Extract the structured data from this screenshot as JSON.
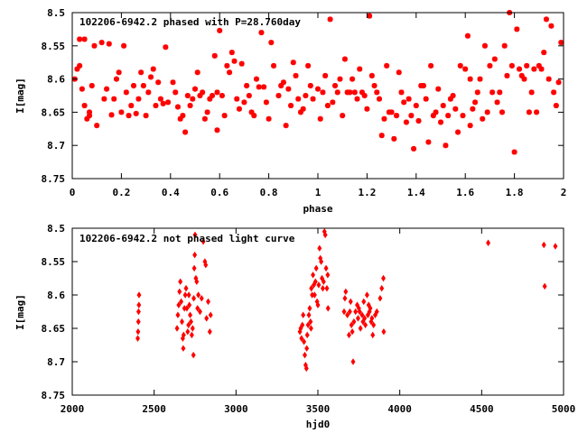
{
  "chart_data": [
    {
      "type": "scatter",
      "title": "102206-6942.2 phased with P=28.760day",
      "xlabel": "phase",
      "ylabel": "I[mag]",
      "xlim": [
        0,
        2
      ],
      "ylim": [
        8.75,
        8.5
      ],
      "y_inverted": true,
      "grid": false,
      "marker": "cross-star",
      "color": "#ff0000",
      "x_ticks": [
        "0",
        "0.2",
        "0.4",
        "0.6",
        "0.8",
        "1",
        "1.2",
        "1.4",
        "1.6",
        "1.8",
        "2"
      ],
      "y_ticks": [
        "8.5",
        "8.55",
        "8.6",
        "8.65",
        "8.7",
        "8.75"
      ],
      "points": [
        [
          0.01,
          8.6
        ],
        [
          0.02,
          8.585
        ],
        [
          0.03,
          8.58
        ],
        [
          0.03,
          8.54
        ],
        [
          0.04,
          8.615
        ],
        [
          0.05,
          8.64
        ],
        [
          0.05,
          8.54
        ],
        [
          0.06,
          8.66
        ],
        [
          0.07,
          8.655
        ],
        [
          0.07,
          8.65
        ],
        [
          0.08,
          8.61
        ],
        [
          0.09,
          8.55
        ],
        [
          0.1,
          8.67
        ],
        [
          0.12,
          8.545
        ],
        [
          0.13,
          8.63
        ],
        [
          0.14,
          8.615
        ],
        [
          0.15,
          8.547
        ],
        [
          0.16,
          8.654
        ],
        [
          0.17,
          8.63
        ],
        [
          0.18,
          8.6
        ],
        [
          0.19,
          8.59
        ],
        [
          0.2,
          8.65
        ],
        [
          0.21,
          8.55
        ],
        [
          0.22,
          8.62
        ],
        [
          0.23,
          8.655
        ],
        [
          0.24,
          8.64
        ],
        [
          0.25,
          8.61
        ],
        [
          0.26,
          8.652
        ],
        [
          0.27,
          8.63
        ],
        [
          0.28,
          8.59
        ],
        [
          0.29,
          8.61
        ],
        [
          0.3,
          8.655
        ],
        [
          0.31,
          8.62
        ],
        [
          0.32,
          8.597
        ],
        [
          0.33,
          8.585
        ],
        [
          0.34,
          8.64
        ],
        [
          0.35,
          8.605
        ],
        [
          0.36,
          8.63
        ],
        [
          0.37,
          8.637
        ],
        [
          0.38,
          8.552
        ],
        [
          0.39,
          8.635
        ],
        [
          0.41,
          8.605
        ],
        [
          0.42,
          8.62
        ],
        [
          0.43,
          8.642
        ],
        [
          0.44,
          8.66
        ],
        [
          0.45,
          8.655
        ],
        [
          0.46,
          8.68
        ],
        [
          0.47,
          8.625
        ],
        [
          0.48,
          8.64
        ],
        [
          0.49,
          8.63
        ],
        [
          0.5,
          8.615
        ],
        [
          0.51,
          8.59
        ],
        [
          0.52,
          8.625
        ],
        [
          0.53,
          8.62
        ],
        [
          0.54,
          8.66
        ],
        [
          0.55,
          8.65
        ],
        [
          0.56,
          8.63
        ],
        [
          0.57,
          8.625
        ],
        [
          0.58,
          8.565
        ],
        [
          0.59,
          8.62
        ],
        [
          0.59,
          8.677
        ],
        [
          0.6,
          8.527
        ],
        [
          0.61,
          8.625
        ],
        [
          0.62,
          8.655
        ],
        [
          0.63,
          8.58
        ],
        [
          0.64,
          8.59
        ],
        [
          0.65,
          8.56
        ],
        [
          0.66,
          8.573
        ],
        [
          0.67,
          8.63
        ],
        [
          0.68,
          8.645
        ],
        [
          0.69,
          8.577
        ],
        [
          0.7,
          8.635
        ],
        [
          0.71,
          8.61
        ],
        [
          0.72,
          8.625
        ],
        [
          0.73,
          8.65
        ],
        [
          0.74,
          8.655
        ],
        [
          0.75,
          8.6
        ],
        [
          0.76,
          8.612
        ],
        [
          0.77,
          8.53
        ],
        [
          0.78,
          8.612
        ],
        [
          0.79,
          8.635
        ],
        [
          0.8,
          8.66
        ],
        [
          0.81,
          8.545
        ],
        [
          0.82,
          8.58
        ],
        [
          0.84,
          8.625
        ],
        [
          0.85,
          8.61
        ],
        [
          0.86,
          8.605
        ],
        [
          0.87,
          8.67
        ],
        [
          0.88,
          8.615
        ],
        [
          0.89,
          8.64
        ],
        [
          0.9,
          8.575
        ],
        [
          0.91,
          8.595
        ],
        [
          0.92,
          8.63
        ],
        [
          0.93,
          8.65
        ],
        [
          0.94,
          8.645
        ],
        [
          0.95,
          8.625
        ],
        [
          0.96,
          8.58
        ],
        [
          0.97,
          8.61
        ],
        [
          0.98,
          8.63
        ],
        [
          1.0,
          8.615
        ],
        [
          1.01,
          8.66
        ],
        [
          1.02,
          8.62
        ],
        [
          1.03,
          8.595
        ],
        [
          1.04,
          8.64
        ],
        [
          1.05,
          8.51
        ],
        [
          1.06,
          8.635
        ],
        [
          1.07,
          8.61
        ],
        [
          1.08,
          8.62
        ],
        [
          1.09,
          8.6
        ],
        [
          1.1,
          8.655
        ],
        [
          1.11,
          8.57
        ],
        [
          1.12,
          8.62
        ],
        [
          1.13,
          8.62
        ],
        [
          1.14,
          8.6
        ],
        [
          1.15,
          8.62
        ],
        [
          1.16,
          8.63
        ],
        [
          1.17,
          8.585
        ],
        [
          1.18,
          8.62
        ],
        [
          1.19,
          8.625
        ],
        [
          1.2,
          8.645
        ],
        [
          1.21,
          8.505
        ],
        [
          1.22,
          8.595
        ],
        [
          1.23,
          8.61
        ],
        [
          1.24,
          8.62
        ],
        [
          1.25,
          8.63
        ],
        [
          1.26,
          8.685
        ],
        [
          1.27,
          8.66
        ],
        [
          1.28,
          8.58
        ],
        [
          1.29,
          8.65
        ],
        [
          1.3,
          8.65
        ],
        [
          1.31,
          8.69
        ],
        [
          1.32,
          8.655
        ],
        [
          1.33,
          8.59
        ],
        [
          1.34,
          8.62
        ],
        [
          1.35,
          8.635
        ],
        [
          1.36,
          8.665
        ],
        [
          1.37,
          8.63
        ],
        [
          1.38,
          8.655
        ],
        [
          1.39,
          8.705
        ],
        [
          1.4,
          8.64
        ],
        [
          1.41,
          8.663
        ],
        [
          1.42,
          8.61
        ],
        [
          1.43,
          8.61
        ],
        [
          1.44,
          8.63
        ],
        [
          1.45,
          8.695
        ],
        [
          1.46,
          8.58
        ],
        [
          1.47,
          8.655
        ],
        [
          1.48,
          8.65
        ],
        [
          1.49,
          8.615
        ],
        [
          1.5,
          8.665
        ],
        [
          1.51,
          8.64
        ],
        [
          1.52,
          8.7
        ],
        [
          1.53,
          8.655
        ],
        [
          1.54,
          8.63
        ],
        [
          1.55,
          8.625
        ],
        [
          1.56,
          8.645
        ],
        [
          1.57,
          8.68
        ],
        [
          1.58,
          8.58
        ],
        [
          1.59,
          8.655
        ],
        [
          1.6,
          8.585
        ],
        [
          1.61,
          8.535
        ],
        [
          1.62,
          8.6
        ],
        [
          1.62,
          8.67
        ],
        [
          1.63,
          8.645
        ],
        [
          1.64,
          8.635
        ],
        [
          1.65,
          8.62
        ],
        [
          1.66,
          8.6
        ],
        [
          1.67,
          8.66
        ],
        [
          1.68,
          8.55
        ],
        [
          1.69,
          8.65
        ],
        [
          1.7,
          8.58
        ],
        [
          1.71,
          8.62
        ],
        [
          1.72,
          8.57
        ],
        [
          1.73,
          8.635
        ],
        [
          1.74,
          8.62
        ],
        [
          1.75,
          8.65
        ],
        [
          1.76,
          8.55
        ],
        [
          1.77,
          8.595
        ],
        [
          1.78,
          8.5
        ],
        [
          1.79,
          8.58
        ],
        [
          1.8,
          8.71
        ],
        [
          1.81,
          8.525
        ],
        [
          1.82,
          8.585
        ],
        [
          1.83,
          8.595
        ],
        [
          1.84,
          8.6
        ],
        [
          1.85,
          8.58
        ],
        [
          1.86,
          8.65
        ],
        [
          1.87,
          8.62
        ],
        [
          1.88,
          8.585
        ],
        [
          1.89,
          8.65
        ],
        [
          1.9,
          8.58
        ],
        [
          1.91,
          8.585
        ],
        [
          1.92,
          8.56
        ],
        [
          1.93,
          8.51
        ],
        [
          1.94,
          8.6
        ],
        [
          1.95,
          8.52
        ],
        [
          1.96,
          8.62
        ],
        [
          1.97,
          8.64
        ],
        [
          1.98,
          8.605
        ],
        [
          1.99,
          8.545
        ]
      ]
    },
    {
      "type": "scatter",
      "title": "102206-6942.2 not phased light curve",
      "xlabel": "hjd0",
      "ylabel": "I[mag]",
      "xlim": [
        2000,
        5000
      ],
      "ylim": [
        8.75,
        8.5
      ],
      "y_inverted": true,
      "grid": false,
      "marker": "diamond",
      "color": "#ff0000",
      "x_ticks": [
        "2000",
        "2500",
        "3000",
        "3500",
        "4000",
        "4500",
        "5000"
      ],
      "y_ticks": [
        "8.5",
        "8.55",
        "8.6",
        "8.65",
        "8.7",
        "8.75"
      ],
      "points": [
        [
          2400,
          8.665
        ],
        [
          2402,
          8.655
        ],
        [
          2404,
          8.64
        ],
        [
          2405,
          8.625
        ],
        [
          2407,
          8.615
        ],
        [
          2408,
          8.6
        ],
        [
          2640,
          8.65
        ],
        [
          2645,
          8.63
        ],
        [
          2650,
          8.615
        ],
        [
          2655,
          8.595
        ],
        [
          2660,
          8.58
        ],
        [
          2665,
          8.61
        ],
        [
          2670,
          8.64
        ],
        [
          2675,
          8.665
        ],
        [
          2678,
          8.68
        ],
        [
          2680,
          8.66
        ],
        [
          2685,
          8.62
        ],
        [
          2690,
          8.6
        ],
        [
          2695,
          8.59
        ],
        [
          2700,
          8.62
        ],
        [
          2705,
          8.655
        ],
        [
          2710,
          8.645
        ],
        [
          2712,
          8.6
        ],
        [
          2715,
          8.615
        ],
        [
          2720,
          8.63
        ],
        [
          2725,
          8.64
        ],
        [
          2730,
          8.66
        ],
        [
          2735,
          8.65
        ],
        [
          2740,
          8.69
        ],
        [
          2742,
          8.605
        ],
        [
          2745,
          8.56
        ],
        [
          2748,
          8.54
        ],
        [
          2750,
          8.51
        ],
        [
          2755,
          8.575
        ],
        [
          2760,
          8.58
        ],
        [
          2765,
          8.62
        ],
        [
          2770,
          8.6
        ],
        [
          2780,
          8.625
        ],
        [
          2790,
          8.605
        ],
        [
          2800,
          8.52
        ],
        [
          2810,
          8.55
        ],
        [
          2815,
          8.555
        ],
        [
          2820,
          8.635
        ],
        [
          2830,
          8.61
        ],
        [
          2840,
          8.655
        ],
        [
          2845,
          8.63
        ],
        [
          3390,
          8.655
        ],
        [
          3395,
          8.65
        ],
        [
          3400,
          8.665
        ],
        [
          3405,
          8.645
        ],
        [
          3410,
          8.63
        ],
        [
          3415,
          8.67
        ],
        [
          3420,
          8.69
        ],
        [
          3425,
          8.705
        ],
        [
          3430,
          8.71
        ],
        [
          3432,
          8.68
        ],
        [
          3435,
          8.66
        ],
        [
          3440,
          8.645
        ],
        [
          3445,
          8.63
        ],
        [
          3450,
          8.62
        ],
        [
          3455,
          8.64
        ],
        [
          3458,
          8.65
        ],
        [
          3460,
          8.59
        ],
        [
          3465,
          8.6
        ],
        [
          3470,
          8.57
        ],
        [
          3475,
          8.585
        ],
        [
          3480,
          8.6
        ],
        [
          3485,
          8.58
        ],
        [
          3490,
          8.56
        ],
        [
          3495,
          8.61
        ],
        [
          3500,
          8.615
        ],
        [
          3505,
          8.585
        ],
        [
          3510,
          8.53
        ],
        [
          3515,
          8.545
        ],
        [
          3520,
          8.55
        ],
        [
          3525,
          8.575
        ],
        [
          3530,
          8.59
        ],
        [
          3535,
          8.58
        ],
        [
          3540,
          8.505
        ],
        [
          3545,
          8.51
        ],
        [
          3550,
          8.56
        ],
        [
          3555,
          8.59
        ],
        [
          3560,
          8.57
        ],
        [
          3562,
          8.62
        ],
        [
          3660,
          8.625
        ],
        [
          3665,
          8.605
        ],
        [
          3670,
          8.595
        ],
        [
          3680,
          8.63
        ],
        [
          3690,
          8.66
        ],
        [
          3695,
          8.625
        ],
        [
          3700,
          8.61
        ],
        [
          3705,
          8.645
        ],
        [
          3710,
          8.655
        ],
        [
          3715,
          8.7
        ],
        [
          3720,
          8.64
        ],
        [
          3730,
          8.625
        ],
        [
          3740,
          8.615
        ],
        [
          3745,
          8.635
        ],
        [
          3750,
          8.62
        ],
        [
          3755,
          8.625
        ],
        [
          3760,
          8.65
        ],
        [
          3770,
          8.63
        ],
        [
          3775,
          8.64
        ],
        [
          3780,
          8.61
        ],
        [
          3785,
          8.635
        ],
        [
          3790,
          8.645
        ],
        [
          3800,
          8.6
        ],
        [
          3805,
          8.63
        ],
        [
          3810,
          8.615
        ],
        [
          3815,
          8.625
        ],
        [
          3820,
          8.62
        ],
        [
          3825,
          8.64
        ],
        [
          3830,
          8.635
        ],
        [
          3835,
          8.66
        ],
        [
          3840,
          8.645
        ],
        [
          3850,
          8.63
        ],
        [
          3860,
          8.625
        ],
        [
          3880,
          8.605
        ],
        [
          3890,
          8.59
        ],
        [
          3900,
          8.575
        ],
        [
          3902,
          8.655
        ],
        [
          4540,
          8.522
        ],
        [
          4880,
          8.525
        ],
        [
          4885,
          8.587
        ],
        [
          4950,
          8.527
        ]
      ]
    }
  ]
}
